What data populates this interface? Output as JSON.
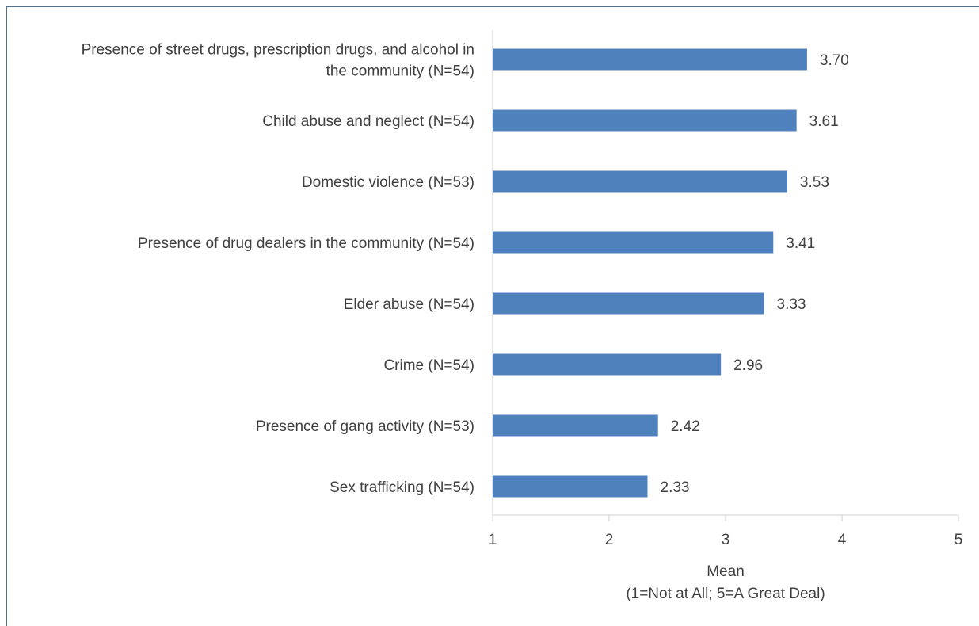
{
  "chart_data": {
    "type": "bar",
    "orientation": "horizontal",
    "categories": [
      [
        "Presence of street drugs, prescription drugs, and alcohol in",
        "the community (N=54)"
      ],
      [
        "Child abuse and neglect (N=54)"
      ],
      [
        "Domestic violence (N=53)"
      ],
      [
        "Presence of drug dealers in the community (N=54)"
      ],
      [
        "Elder abuse (N=54)"
      ],
      [
        "Crime (N=54)"
      ],
      [
        "Presence of gang activity (N=53)"
      ],
      [
        "Sex trafficking (N=54)"
      ]
    ],
    "values": [
      3.7,
      3.61,
      3.53,
      3.41,
      3.33,
      2.96,
      2.42,
      2.33
    ],
    "value_labels": [
      "3.70",
      "3.61",
      "3.53",
      "3.41",
      "3.33",
      "2.96",
      "2.42",
      "2.33"
    ],
    "xlim": [
      1,
      5
    ],
    "xticks": [
      "1",
      "2",
      "3",
      "4",
      "5"
    ],
    "xlabel": [
      "Mean",
      "(1=Not at All; 5=A Great Deal)"
    ],
    "ylabel": "",
    "title": "",
    "bar_color": "#4f81bd",
    "grid": false
  }
}
